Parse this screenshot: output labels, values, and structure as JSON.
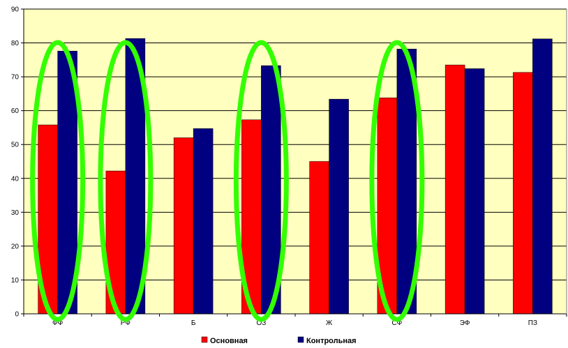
{
  "chart_data": {
    "type": "bar",
    "categories": [
      "ФФ",
      "РФ",
      "Б",
      "ОЗ",
      "Ж",
      "СФ",
      "ЭФ",
      "ПЗ"
    ],
    "series": [
      {
        "name": "Основная",
        "color": "#ff0000",
        "values": [
          55.8,
          42.2,
          52.0,
          57.3,
          45.0,
          63.8,
          73.5,
          71.3
        ]
      },
      {
        "name": "Контрольная",
        "color": "#000080",
        "values": [
          77.6,
          81.3,
          54.7,
          73.3,
          63.4,
          78.2,
          72.4,
          81.2
        ]
      }
    ],
    "y_ticks": [
      "0",
      "10",
      "20",
      "30",
      "40",
      "50",
      "60",
      "70",
      "80",
      "90"
    ],
    "ylim": [
      0,
      90
    ],
    "grid": true,
    "legend_position": "bottom",
    "plot_background": "#ffffc0",
    "highlighted_categories": [
      "ФФ",
      "РФ",
      "ОЗ",
      "СФ"
    ],
    "highlight_color": "#33ff00"
  }
}
